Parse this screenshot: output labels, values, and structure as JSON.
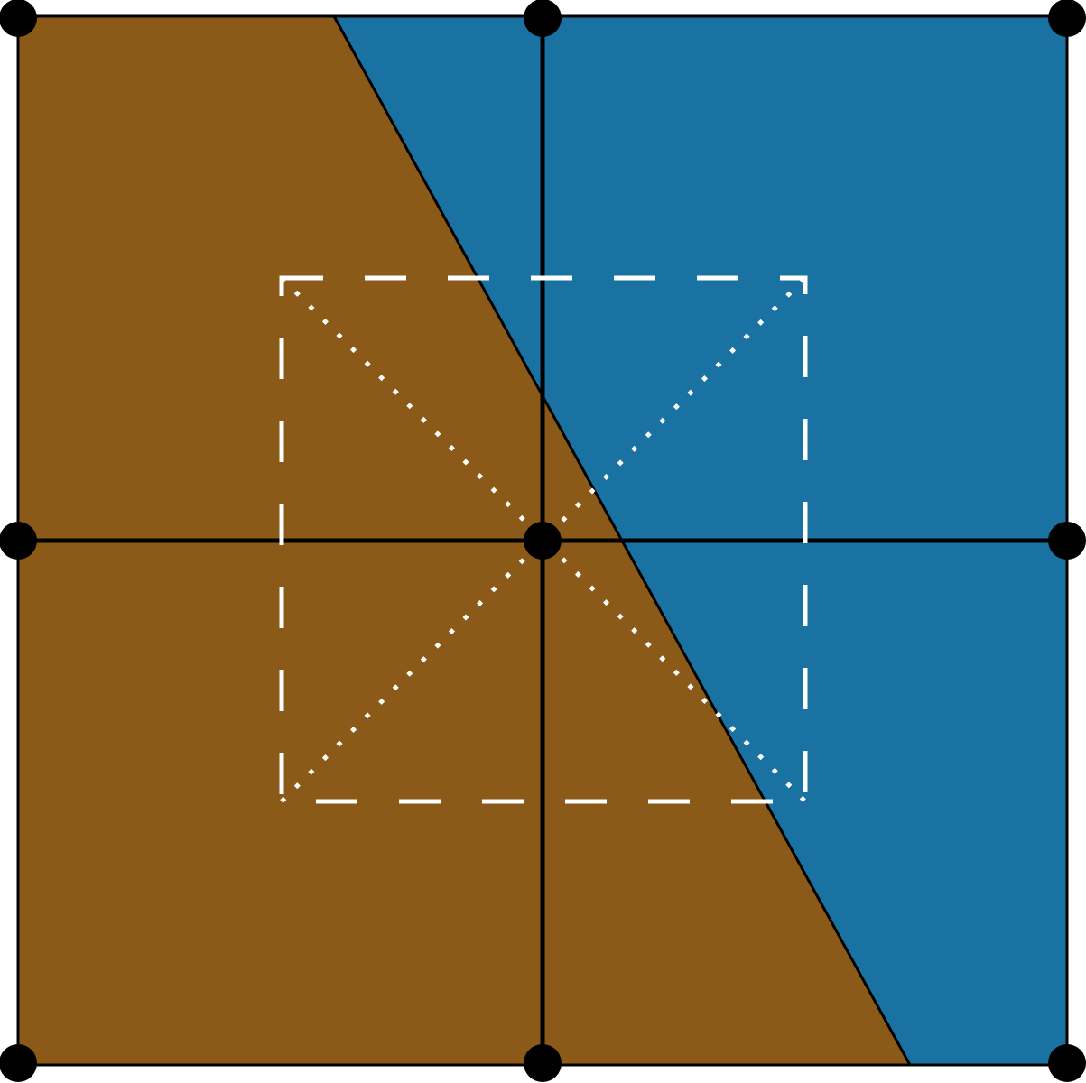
{
  "colors": {
    "region_left": "#8B5A18",
    "region_right": "#1A72A2",
    "grid_line": "#000000",
    "node": "#000000",
    "inner_square": "#FFFFFF",
    "diagonal": "#FFFFFF"
  },
  "grid": {
    "rows": 2,
    "cols": 2
  },
  "node_count": 9
}
